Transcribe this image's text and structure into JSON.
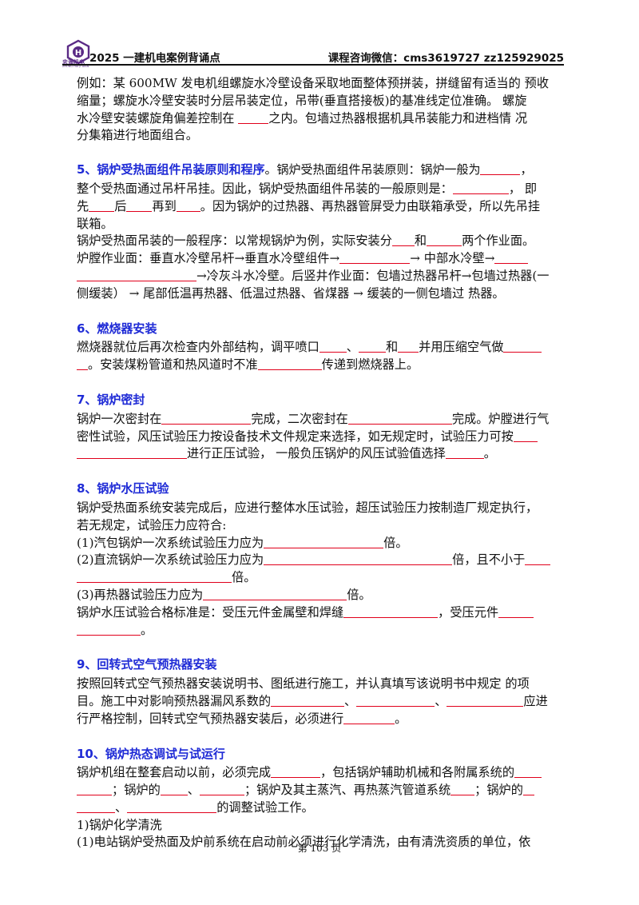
{
  "header": {
    "logo_text": "忠海机电",
    "logo_sub": "ZHONG HAI JI DIAN",
    "title": "2025 一建机电案例背诵点",
    "contact": "课程咨询微信：cms3619727   zz125929025"
  },
  "content": {
    "intro": {
      "l1": "例如：某 600MW 发电机组螺旋水冷壁设备采取地面整体预拼装，拼缝留有适当的   预收",
      "l2": "缩量；螺旋水冷壁安装时分层吊装定位，吊带(垂直搭接板)的基准线定位准确。 螺旋",
      "l3a": "水冷壁安装螺旋角偏差控制在 ",
      "l3b": "之内。包墙过热器根据机具吊装能力和进档情    况",
      "l4": "分集箱进行地面组合。"
    },
    "s5": {
      "title": "5、锅炉受热面组件吊装原则和程序",
      "t1a": "。锅炉受热面组件吊装原则：锅炉一般为",
      "t1b": "，",
      "t2a": "整个受热面通过吊杆吊挂。因此，锅炉受热面组件吊装的一般原则是：",
      "t2b": "，   即",
      "t3a": "先",
      "t3b": "后",
      "t3c": "再到",
      "t3d": "。因为锅炉的过热器、再热器管屏受力由联箱承受，所以先吊挂",
      "t4": "联箱。",
      "t5a": "锅炉受热面吊装的一般程序：以常规锅炉为例，实际安装分",
      "t5b": "和",
      "t5c": "两个作业面。",
      "t6a": "炉膛作业面：垂直水冷壁吊杆→垂直水冷壁组件→",
      "t6b": "→  中部水冷壁→",
      "t7a": "→冷灰斗水冷壁。后竖井作业面：包墙过热器吊杆→包墙过热器(一",
      "t8": "侧缓装） →  尾部低温再热器、低温过热器、省煤器  →  缓装的一侧包墙过  热器。"
    },
    "s6": {
      "title": "6、燃烧器安装",
      "t1a": "燃烧器就位后再次检查内外部结构，调平喷口",
      "t1b": "、",
      "t1c": "和",
      "t1d": "并用压缩空气做",
      "t2a": "。安装煤粉管道和热风道时不准",
      "t2b": "传递到燃烧器上。"
    },
    "s7": {
      "title": "7、锅炉密封",
      "t1a": "锅炉一次密封在",
      "t1b": "完成，二次密封在",
      "t1c": "完成。炉膛进行气",
      "t2a": "密性试验，风压试验压力按设备技术文件规定来选择，如无规定时，试验压力可按",
      "t3a": "进行正压试验，  一般负压锅炉的风压试验值选择",
      "t3b": "。"
    },
    "s8": {
      "title": "8、锅炉水压试验",
      "t1": "锅炉受热面系统安装完成后，应进行整体水压试验，超压试验压力按制造厂规定执行，",
      "t2": "若无规定，试验压力应符合:",
      "t3a": "(1)汽包锅炉一次系统试验压力应为",
      "t3b": "倍。",
      "t4a": "(2)直流锅炉一次系统试验压力应为",
      "t4b": "倍，且不小于",
      "t5": "倍。",
      "t6a": "(3)再热器试验压力应为",
      "t6b": "倍。",
      "t7a": "锅炉水压试验合格标准是：受压元件金属壁和焊缝",
      "t7b": "，受压元件",
      "t8": "。"
    },
    "s9": {
      "title": "9、回转式空气预热器安装",
      "t1": "按照回转式空气预热器安装说明书、图纸进行施工，并认真填写该说明书中规定  的项",
      "t2a": "目。施工中对影响预热器漏风系数的",
      "t2b": "、",
      "t2c": "、",
      "t2d": "应进",
      "t3a": "行严格控制，回转式空气预热器安装后，必须进行",
      "t3b": "。"
    },
    "s10": {
      "title": "10、锅炉热态调试与试运行",
      "t1a": "锅炉机组在整套启动以前，必须完成",
      "t1b": "，包括锅炉辅助机械和各附属系统的",
      "t2a": "；锅炉的",
      "t2b": "、",
      "t2c": "；锅炉及其主蒸汽、再热蒸汽管道系统",
      "t2d": "；锅炉的",
      "t3a": "、",
      "t3b": "的调整试验工作。",
      "t4": "1)锅炉化学清洗",
      "t5": "(1)电站锅炉受热面及炉前系统在启动前必须进行化学清洗，由有清洗资质的单位，依"
    }
  },
  "footer": {
    "page": "第 103 页"
  },
  "colors": {
    "heading": "#1f2bd6",
    "blank_line": "#e0001b",
    "logo": "#5a2a86"
  }
}
